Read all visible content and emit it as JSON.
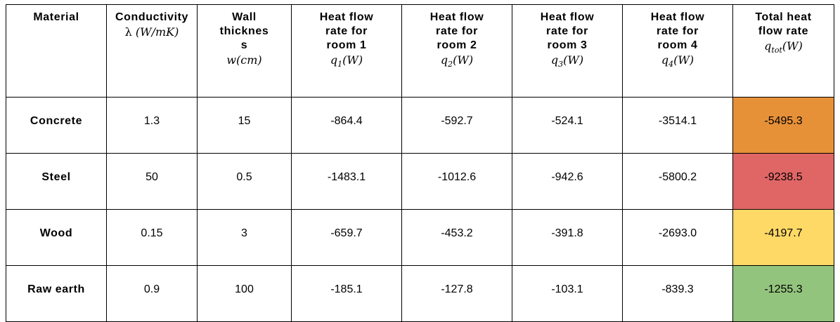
{
  "headers": {
    "material": {
      "lines": [
        "Material"
      ]
    },
    "conductivity": {
      "lines": [
        "Conductivity"
      ],
      "math_symbol": "λ",
      "math_unit": "(W/mK)"
    },
    "wall": {
      "lines": [
        "Wall",
        "thicknes",
        "s"
      ],
      "math_symbol": "w",
      "math_unit": "(cm)"
    },
    "room1": {
      "lines": [
        "Heat flow",
        "rate for",
        "room 1"
      ],
      "math_symbol": "q",
      "math_sub": "1",
      "math_unit": "(W)"
    },
    "room2": {
      "lines": [
        "Heat flow",
        "rate for",
        "room 2"
      ],
      "math_symbol": "q",
      "math_sub": "2",
      "math_unit": "(W)"
    },
    "room3": {
      "lines": [
        "Heat flow",
        "rate for",
        "room 3"
      ],
      "math_symbol": "q",
      "math_sub": "3",
      "math_unit": "(W)"
    },
    "room4": {
      "lines": [
        "Heat flow",
        "rate for",
        "room 4"
      ],
      "math_symbol": "q",
      "math_sub": "4",
      "math_unit": "(W)"
    },
    "total": {
      "lines": [
        "Total heat",
        "flow rate"
      ],
      "math_symbol": "q",
      "math_sub": "tot",
      "math_unit": "(W)"
    }
  },
  "rows": [
    {
      "material": "Concrete",
      "conductivity": "1.3",
      "thickness": "15",
      "q1": "-864.4",
      "q2": "-592.7",
      "q3": "-524.1",
      "q4": "-3514.1",
      "total": "-5495.3"
    },
    {
      "material": "Steel",
      "conductivity": "50",
      "thickness": "0.5",
      "q1": "-1483.1",
      "q2": "-1012.6",
      "q3": "-942.6",
      "q4": "-5800.2",
      "total": "-9238.5"
    },
    {
      "material": "Wood",
      "conductivity": "0.15",
      "thickness": "3",
      "q1": "-659.7",
      "q2": "-453.2",
      "q3": "-391.8",
      "q4": "-2693.0",
      "total": "-4197.7"
    },
    {
      "material": "Raw earth",
      "conductivity": "0.9",
      "thickness": "100",
      "q1": "-185.1",
      "q2": "-127.8",
      "q3": "-103.1",
      "q4": "-839.3",
      "total": "-1255.3"
    }
  ],
  "total_colors": [
    "#e69138",
    "#e06666",
    "#ffd966",
    "#93c47d"
  ]
}
